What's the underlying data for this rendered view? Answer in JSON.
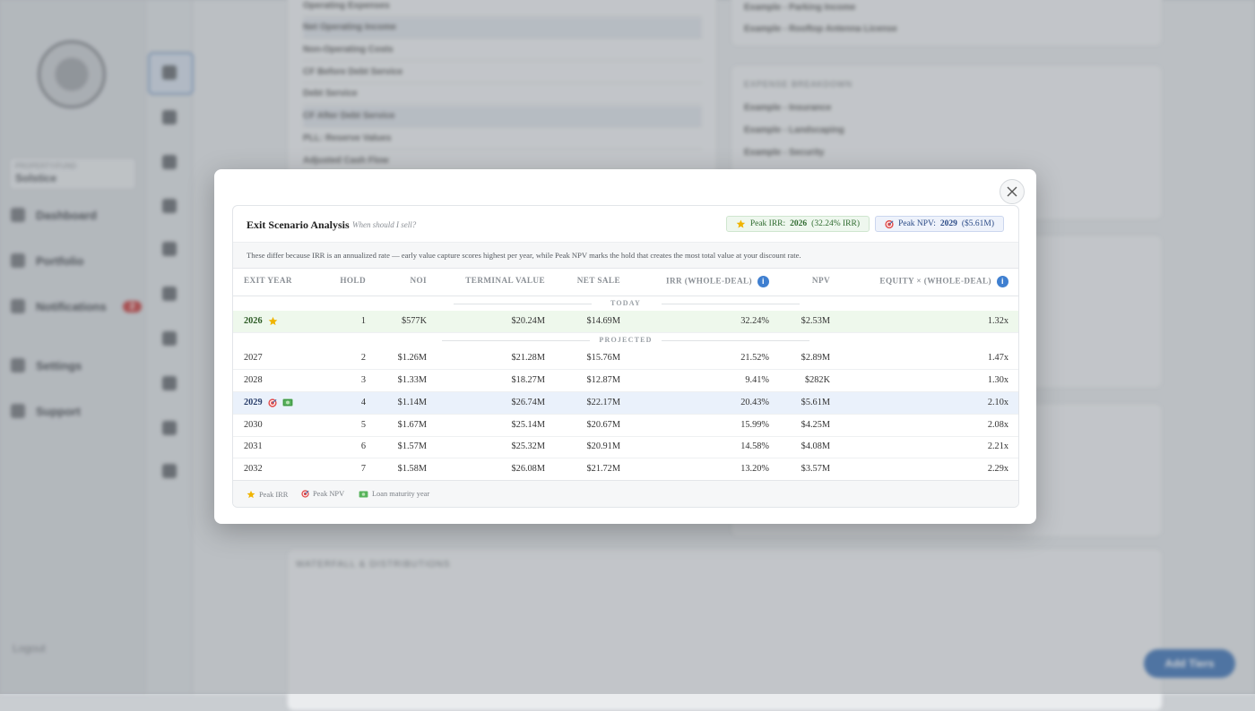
{
  "background": {
    "property_select": {
      "label": "PROPERTY/FUND",
      "value": "Solstice"
    },
    "nav": [
      {
        "label": "Dashboard"
      },
      {
        "label": "Portfolio"
      },
      {
        "label": "Notifications",
        "badge": "2"
      },
      {
        "label": "Settings"
      },
      {
        "label": "Support"
      }
    ],
    "logout": "Logout",
    "cashflow_rows": [
      {
        "label": "Operating Expenses"
      },
      {
        "label": "Net Operating Income"
      },
      {
        "label": "Non-Operating Costs"
      },
      {
        "label": "CF Before Debt Service"
      },
      {
        "label": "Debt Service"
      },
      {
        "label": "CF After Debt Service"
      },
      {
        "label": "PLL: Reserve Values"
      },
      {
        "label": "Adjusted Cash Flow"
      }
    ],
    "income_items": [
      "Example - Parking Income",
      "Example - Rooftop Antenna License"
    ],
    "expense_title": "EXPENSE BREAKDOWN",
    "expense_items": [
      "Example - Insurance",
      "Example - Landscaping",
      "Example - Security"
    ],
    "waterfall_title": "WATERFALL & DISTRIBUTIONS",
    "add_button": "Add Tiers"
  },
  "modal": {
    "title": "Exit Scenario Analysis",
    "subtitle": "When should I sell?",
    "peak_irr": {
      "label": "Peak IRR:",
      "year": "2026",
      "detail": "(32.24% IRR)"
    },
    "peak_npv": {
      "label": "Peak NPV:",
      "year": "2029",
      "detail": "($5.61M)"
    },
    "explanation": "These differ because IRR is an annualized rate — early value capture scores highest per year, while Peak NPV marks the hold that creates the most total value at your discount rate.",
    "columns": {
      "exit_year": "EXIT YEAR",
      "hold": "HOLD",
      "noi": "NOI",
      "terminal_value": "TERMINAL VALUE",
      "net_sale": "NET SALE",
      "irr": "IRR (WHOLE-DEAL)",
      "npv": "NPV",
      "equity": "EQUITY × (WHOLE-DEAL)"
    },
    "section_today": "TODAY",
    "section_projected": "PROJECTED",
    "rows": [
      {
        "year": "2026",
        "hold": "1",
        "noi": "$577K",
        "terminal_value": "$20.24M",
        "net_sale": "$14.69M",
        "irr": "32.24%",
        "npv": "$2.53M",
        "equity": "1.32x"
      },
      {
        "year": "2027",
        "hold": "2",
        "noi": "$1.26M",
        "terminal_value": "$21.28M",
        "net_sale": "$15.76M",
        "irr": "21.52%",
        "npv": "$2.89M",
        "equity": "1.47x"
      },
      {
        "year": "2028",
        "hold": "3",
        "noi": "$1.33M",
        "terminal_value": "$18.27M",
        "net_sale": "$12.87M",
        "irr": "9.41%",
        "npv": "$282K",
        "equity": "1.30x"
      },
      {
        "year": "2029",
        "hold": "4",
        "noi": "$1.14M",
        "terminal_value": "$26.74M",
        "net_sale": "$22.17M",
        "irr": "20.43%",
        "npv": "$5.61M",
        "equity": "2.10x"
      },
      {
        "year": "2030",
        "hold": "5",
        "noi": "$1.67M",
        "terminal_value": "$25.14M",
        "net_sale": "$20.67M",
        "irr": "15.99%",
        "npv": "$4.25M",
        "equity": "2.08x"
      },
      {
        "year": "2031",
        "hold": "6",
        "noi": "$1.57M",
        "terminal_value": "$25.32M",
        "net_sale": "$20.91M",
        "irr": "14.58%",
        "npv": "$4.08M",
        "equity": "2.21x"
      },
      {
        "year": "2032",
        "hold": "7",
        "noi": "$1.58M",
        "terminal_value": "$26.08M",
        "net_sale": "$21.72M",
        "irr": "13.20%",
        "npv": "$3.57M",
        "equity": "2.29x"
      }
    ],
    "legend": {
      "peak_irr": "Peak IRR",
      "peak_npv": "Peak NPV",
      "loan_maturity": "Loan maturity year"
    },
    "colors": {
      "peak_irr_bg": "#eef7ee",
      "peak_npv_bg": "#eaf1fb",
      "accent": "#3f7fd0"
    }
  }
}
